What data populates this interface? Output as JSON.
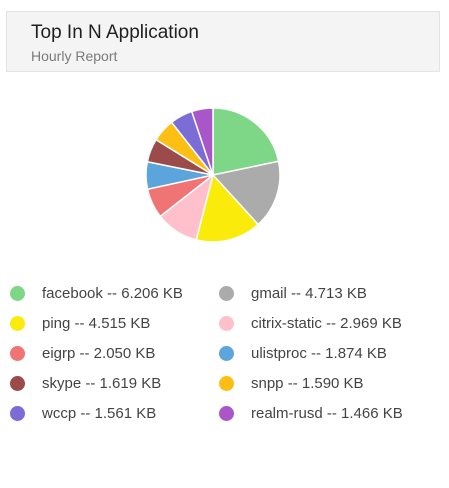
{
  "header": {
    "title": "Top In N Application",
    "subtitle": "Hourly Report"
  },
  "chart_data": {
    "type": "pie",
    "categories": [
      "facebook",
      "gmail",
      "ping",
      "citrix-static",
      "eigrp",
      "ulistproc",
      "skype",
      "snpp",
      "wccp",
      "realm-rusd"
    ],
    "values": [
      6.206,
      4.713,
      4.515,
      2.969,
      2.05,
      1.874,
      1.619,
      1.59,
      1.561,
      1.466
    ],
    "unit": "KB",
    "colors": [
      "#7ed687",
      "#ababab",
      "#fbeb0b",
      "#ffc0cb",
      "#f07474",
      "#5ba4dc",
      "#9c4b4b",
      "#fdbf14",
      "#7b6cd6",
      "#a956c8"
    ],
    "legend_labels": [
      "facebook -- 6.206 KB",
      "gmail -- 4.713 KB",
      "ping -- 4.515 KB",
      "citrix-static -- 2.969 KB",
      "eigrp -- 2.050 KB",
      "ulistproc -- 1.874 KB",
      "skype -- 1.619 KB",
      "snpp -- 1.590 KB",
      "wccp -- 1.561 KB",
      "realm-rusd -- 1.466 KB"
    ],
    "legend_placement": "bottom"
  }
}
